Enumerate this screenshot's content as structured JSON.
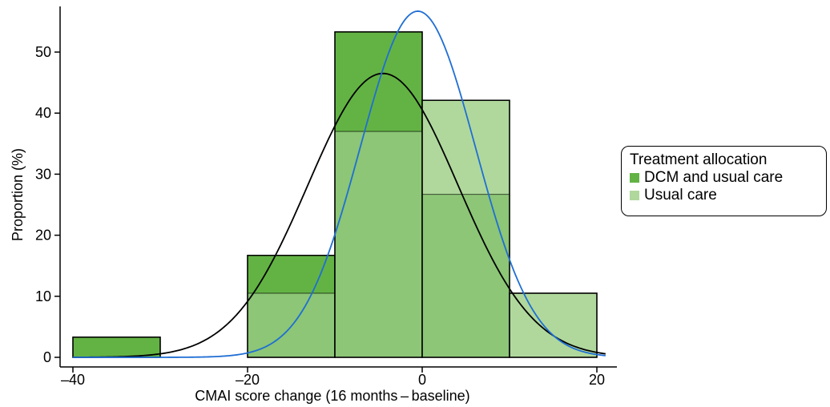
{
  "chart_data": {
    "type": "histogram",
    "title": "",
    "xlabel": "CMAI score change (16 months – baseline)",
    "ylabel": "Proportion (%)",
    "xlim": [
      -40,
      21
    ],
    "ylim": [
      0,
      58
    ],
    "x_ticks": [
      -40,
      -20,
      0,
      20
    ],
    "x_tick_labels": [
      "–40",
      "–20",
      "0",
      "20"
    ],
    "y_ticks": [
      0,
      10,
      20,
      30,
      40,
      50
    ],
    "y_tick_labels": [
      "0",
      "10",
      "20",
      "30",
      "40",
      "50"
    ],
    "bin_edges": [
      -40,
      -30,
      -20,
      -10,
      0,
      10,
      20
    ],
    "series": [
      {
        "name": "DCM and usual care",
        "color": "#63b344",
        "values": [
          3.3,
          0,
          16.7,
          53.3,
          26.7,
          0
        ],
        "density_curve_color": "#000000",
        "density_curve": {
          "mean": -4.5,
          "sd": 8.6,
          "peak": 46.5
        }
      },
      {
        "name": "Usual care",
        "color": "#b0d89c",
        "values": [
          0,
          0,
          10.5,
          37.0,
          42.1,
          10.5
        ],
        "density_curve_color": "#1f6ed4",
        "density_curve": {
          "mean": -0.5,
          "sd": 6.6,
          "peak": 56.7
        }
      }
    ],
    "legend_position": "right",
    "grid": false
  },
  "legend": {
    "title": "Treatment allocation",
    "items": [
      {
        "label": "DCM and usual care",
        "color": "#63b344"
      },
      {
        "label": "Usual care",
        "color": "#b0d89c"
      }
    ]
  }
}
